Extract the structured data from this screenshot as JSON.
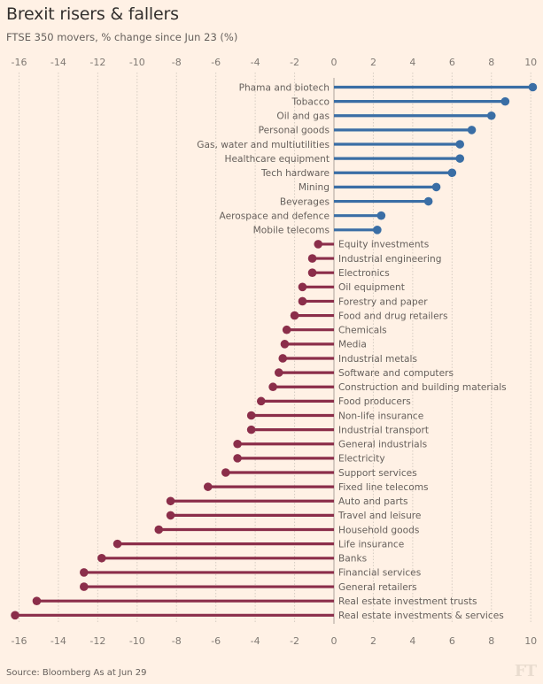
{
  "header": {
    "title": "Brexit risers & fallers",
    "subtitle": "FTSE 350 movers, % change since Jun 23 (%)"
  },
  "footer": {
    "source": "Source: Bloomberg   As at Jun 29",
    "logo": "FT"
  },
  "colors": {
    "background": "#fff1e5",
    "riser": "#3a6ea5",
    "faller": "#8b2e4a",
    "grid": "#d6ccc2",
    "zero_line": "#c8bdb3"
  },
  "chart_data": {
    "type": "bar",
    "subtype": "lollipop-horizontal",
    "title": "Brexit risers & fallers",
    "subtitle": "FTSE 350 movers, % change since Jun 23 (%)",
    "xlabel": "",
    "ylabel": "",
    "xlim": [
      -16,
      10
    ],
    "xticks": [
      -16,
      -14,
      -12,
      -10,
      -8,
      -6,
      -4,
      -2,
      0,
      2,
      4,
      6,
      8,
      10
    ],
    "xtick_labels": [
      "-16",
      "-14",
      "-12",
      "-10",
      "-8",
      "-6",
      "-4",
      "-2",
      "0",
      "2",
      "4",
      "6",
      "8",
      "10"
    ],
    "axis_position": "top-and-bottom",
    "grid": true,
    "legend": "none",
    "categories": [
      "Phama and biotech",
      "Tobacco",
      "Oil and gas",
      "Personal goods",
      "Gas, water and multiutilities",
      "Healthcare equipment",
      "Tech hardware",
      "Mining",
      "Beverages",
      "Aerospace and defence",
      "Mobile telecoms",
      "Equity investments",
      "Industrial engineering",
      "Electronics",
      "Oil equipment",
      "Forestry and paper",
      "Food and drug retailers",
      "Chemicals",
      "Media",
      "Industrial metals",
      "Software and computers",
      "Construction and building materials",
      "Food producers",
      "Non-life insurance",
      "Industrial transport",
      "General industrials",
      "Electricity",
      "Support services",
      "Fixed line telecoms",
      "Auto and parts",
      "Travel and leisure",
      "Household goods",
      "Life insurance",
      "Banks",
      "Financial services",
      "General retailers",
      "Real estate investment trusts",
      "Real estate investments & services"
    ],
    "values": [
      10.1,
      8.7,
      8.0,
      7.0,
      6.4,
      6.4,
      6.0,
      5.2,
      4.8,
      2.4,
      2.2,
      -0.8,
      -1.1,
      -1.1,
      -1.6,
      -1.6,
      -2.0,
      -2.4,
      -2.5,
      -2.6,
      -2.8,
      -3.1,
      -3.7,
      -4.2,
      -4.2,
      -4.9,
      -4.9,
      -5.5,
      -6.4,
      -8.3,
      -8.3,
      -8.9,
      -11.0,
      -11.8,
      -12.7,
      -12.7,
      -15.1,
      -16.2
    ]
  }
}
